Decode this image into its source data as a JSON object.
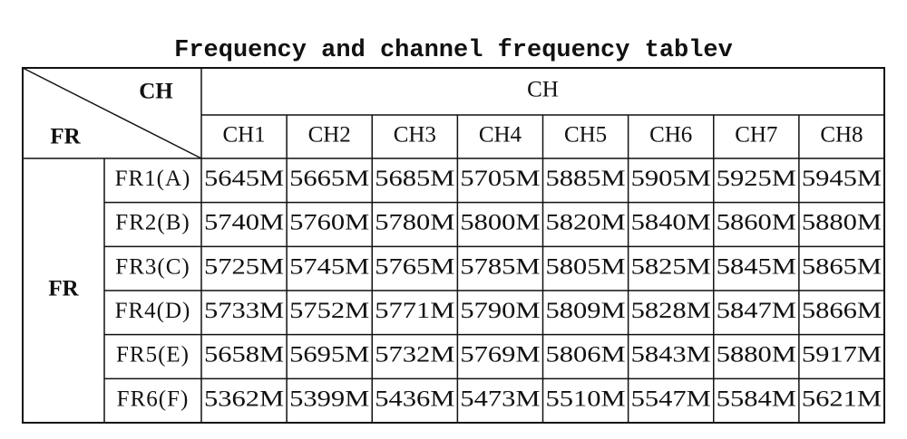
{
  "title": "Frequency and channel frequency tablev",
  "table": {
    "corner_top": "CH",
    "corner_bottom": "FR",
    "group_header": "CH",
    "columns": [
      "CH1",
      "CH2",
      "CH3",
      "CH4",
      "CH5",
      "CH6",
      "CH7",
      "CH8"
    ],
    "row_group": "FR",
    "rows": [
      {
        "label": "FR1(A)",
        "cells": [
          "5645M",
          "5665M",
          "5685M",
          "5705M",
          "5885M",
          "5905M",
          "5925M",
          "5945M"
        ]
      },
      {
        "label": "FR2(B)",
        "cells": [
          "5740M",
          "5760M",
          "5780M",
          "5800M",
          "5820M",
          "5840M",
          "5860M",
          "5880M"
        ]
      },
      {
        "label": "FR3(C)",
        "cells": [
          "5725M",
          "5745M",
          "5765M",
          "5785M",
          "5805M",
          "5825M",
          "5845M",
          "5865M"
        ]
      },
      {
        "label": "FR4(D)",
        "cells": [
          "5733M",
          "5752M",
          "5771M",
          "5790M",
          "5809M",
          "5828M",
          "5847M",
          "5866M"
        ]
      },
      {
        "label": "FR5(E)",
        "cells": [
          "5658M",
          "5695M",
          "5732M",
          "5769M",
          "5806M",
          "5843M",
          "5880M",
          "5917M"
        ]
      },
      {
        "label": "FR6(F)",
        "cells": [
          "5362M",
          "5399M",
          "5436M",
          "5473M",
          "5510M",
          "5547M",
          "5584M",
          "5621M"
        ]
      }
    ]
  }
}
